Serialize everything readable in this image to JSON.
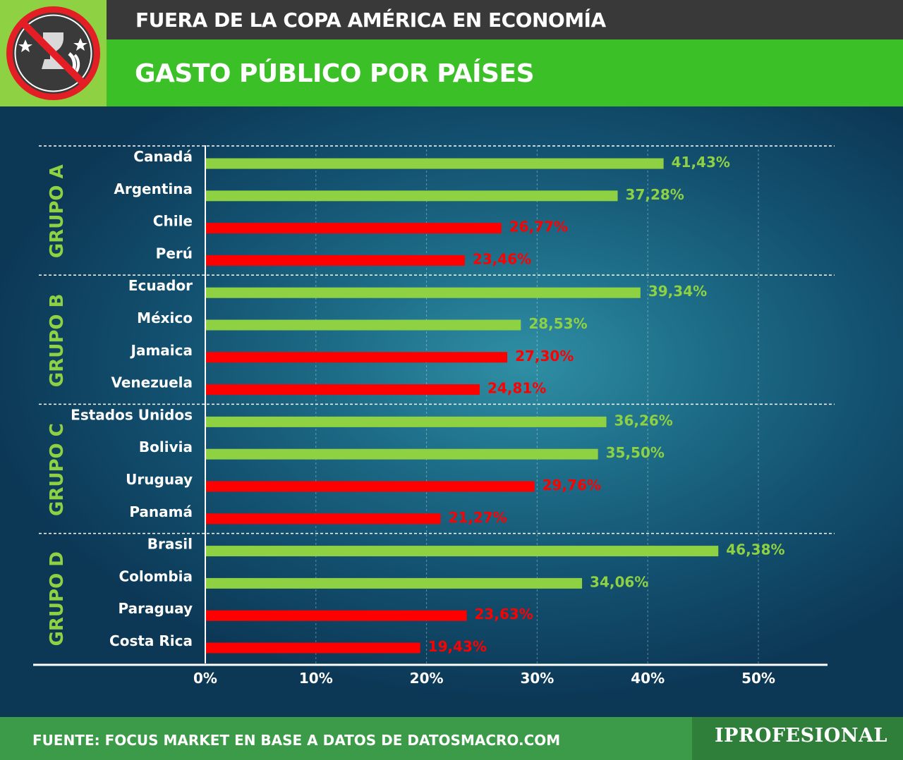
{
  "header": {
    "supertitle": "FUERA DE LA COPA AMÉRICA EN ECONOMÍA",
    "title": "GASTO PÚBLICO POR PAÍSES",
    "logo_icon": "no-copa-america-icon"
  },
  "footer": {
    "source": "FUENTE: FOCUS MARKET EN BASE A DATOS DE DATOSMACRO.COM",
    "brand": "IPROFESIONAL"
  },
  "colors": {
    "above_threshold": "#8ed142",
    "below_threshold": "#ff0000",
    "header_dark": "#393939",
    "header_green": "#3cc028",
    "footer_green": "#3b9b48"
  },
  "chart_data": {
    "type": "bar",
    "orientation": "horizontal",
    "title": "GASTO PÚBLICO POR PAÍSES",
    "xlim": [
      0,
      50
    ],
    "ticks": [
      0,
      10,
      20,
      30,
      40,
      50
    ],
    "tick_labels": [
      "0%",
      "10%",
      "20%",
      "30%",
      "40%",
      "50%"
    ],
    "grid": true,
    "groups": [
      {
        "name": "GRUPO A",
        "items": [
          {
            "country": "Canadá",
            "value": 41.43,
            "label": "41,43%",
            "color": "green"
          },
          {
            "country": "Argentina",
            "value": 37.28,
            "label": "37,28%",
            "color": "green"
          },
          {
            "country": "Chile",
            "value": 26.77,
            "label": "26,77%",
            "color": "red"
          },
          {
            "country": "Perú",
            "value": 23.46,
            "label": "23,46%",
            "color": "red"
          }
        ]
      },
      {
        "name": "GRUPO B",
        "items": [
          {
            "country": "Ecuador",
            "value": 39.34,
            "label": "39,34%",
            "color": "green"
          },
          {
            "country": "México",
            "value": 28.53,
            "label": "28,53%",
            "color": "green"
          },
          {
            "country": "Jamaica",
            "value": 27.3,
            "label": "27,30%",
            "color": "red"
          },
          {
            "country": "Venezuela",
            "value": 24.81,
            "label": "24,81%",
            "color": "red"
          }
        ]
      },
      {
        "name": "GRUPO C",
        "items": [
          {
            "country": "Estados Unidos",
            "value": 36.26,
            "label": "36,26%",
            "color": "green"
          },
          {
            "country": "Bolivia",
            "value": 35.5,
            "label": "35,50%",
            "color": "green"
          },
          {
            "country": "Uruguay",
            "value": 29.76,
            "label": "29,76%",
            "color": "red"
          },
          {
            "country": "Panamá",
            "value": 21.27,
            "label": "21,27%",
            "color": "red"
          }
        ]
      },
      {
        "name": "GRUPO D",
        "items": [
          {
            "country": "Brasil",
            "value": 46.38,
            "label": "46,38%",
            "color": "green"
          },
          {
            "country": "Colombia",
            "value": 34.06,
            "label": "34,06%",
            "color": "green"
          },
          {
            "country": "Paraguay",
            "value": 23.63,
            "label": "23,63%",
            "color": "red"
          },
          {
            "country": "Costa Rica",
            "value": 19.43,
            "label": "19,43%",
            "color": "red"
          }
        ]
      }
    ]
  }
}
